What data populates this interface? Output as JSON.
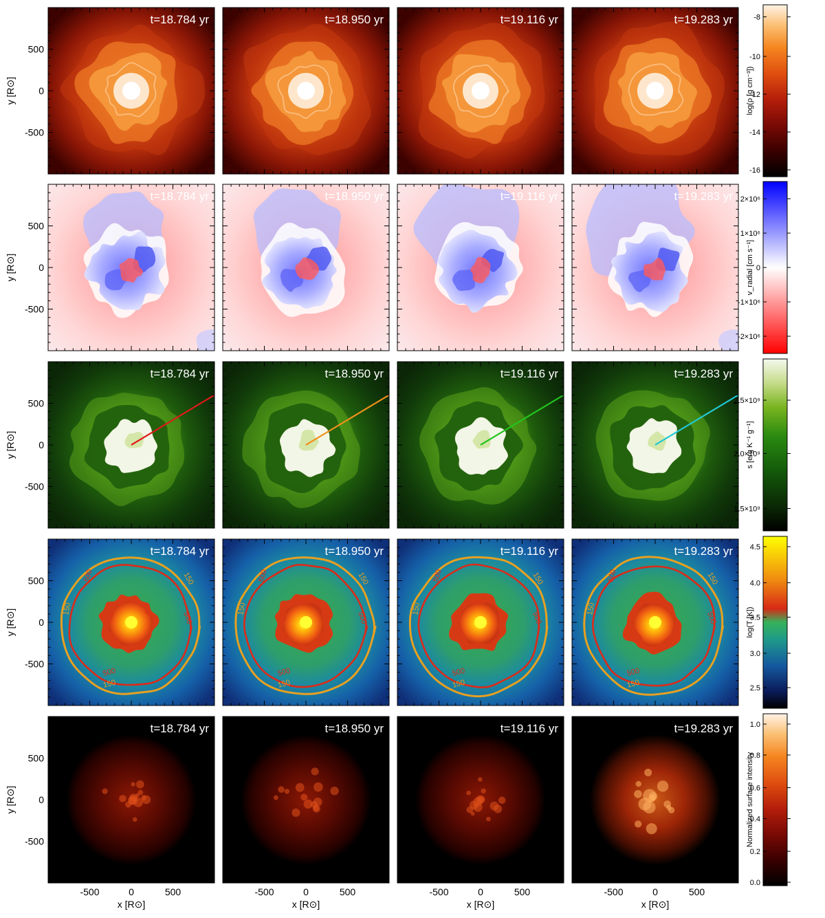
{
  "times": [
    "t=18.784 yr",
    "t=18.950 yr",
    "t=19.116 yr",
    "t=19.283 yr"
  ],
  "axes": {
    "ylabel": "y [R⊙]",
    "xlabel": "x [R⊙]",
    "xticks": [
      "-500",
      "0",
      "500"
    ],
    "yticks": [
      "500",
      "0",
      "-500"
    ]
  },
  "rows": [
    {
      "id": "density",
      "colorbar_label": "log(ρ [g cm⁻³])",
      "colorbar_ticks": [
        "-8",
        "-10",
        "-12",
        "-14",
        "-16"
      ],
      "colormap": [
        "#000000",
        "#3a0000",
        "#7a0a05",
        "#b51e0a",
        "#e04f10",
        "#f5851f",
        "#fbbf73",
        "#fff3e6"
      ],
      "title_color": "#ffffff"
    },
    {
      "id": "vradial",
      "colorbar_label": "v_radial [cm s⁻¹]",
      "colorbar_ticks": [
        "2×10⁶",
        "1×10⁶",
        "0",
        "-1×10⁶",
        "-2×10⁶"
      ],
      "colormap": [
        "#ff0000",
        "#ff8080",
        "#ffffff",
        "#8080ff",
        "#0000ff"
      ],
      "title_color": "#ffffff"
    },
    {
      "id": "entropy",
      "colorbar_label": "s [erg K⁻¹ g⁻¹]",
      "colorbar_ticks": [
        "2.5×10⁹",
        "2.0×10⁹",
        "1.5×10⁹"
      ],
      "colormap": [
        "#000000",
        "#0b2a05",
        "#135a0a",
        "#2a8a10",
        "#7ab520",
        "#c5dc8a",
        "#f5f8ee"
      ],
      "ray_colors": [
        "#e01a1a",
        "#f0901c",
        "#22c41e",
        "#22c8d4"
      ],
      "title_color": "#ffffff"
    },
    {
      "id": "temperature",
      "colorbar_label": "log(T [K])",
      "colorbar_ticks": [
        "4.5",
        "4.0",
        "3.5",
        "3.0",
        "2.5"
      ],
      "colormap": [
        "#000000",
        "#0b1b5a",
        "#145aa0",
        "#1f9a8a",
        "#35b25a",
        "#d72a16",
        "#f08c10",
        "#ffff00"
      ],
      "contour_labels": [
        "150",
        "500"
      ],
      "contour_colors": [
        "#e8a020",
        "#dd2a18"
      ],
      "title_color": "#ffffff"
    },
    {
      "id": "intensity",
      "colorbar_label": "Normalized surface intensity",
      "colorbar_ticks": [
        "1.0",
        "0.8",
        "0.6",
        "0.4",
        "0.2",
        "0.0"
      ],
      "colormap": [
        "#000000",
        "#3a0000",
        "#7a0a05",
        "#b51e0a",
        "#e04f10",
        "#f5851f",
        "#fbbf73",
        "#fff3e6"
      ],
      "title_color": "#ffffff"
    }
  ]
}
